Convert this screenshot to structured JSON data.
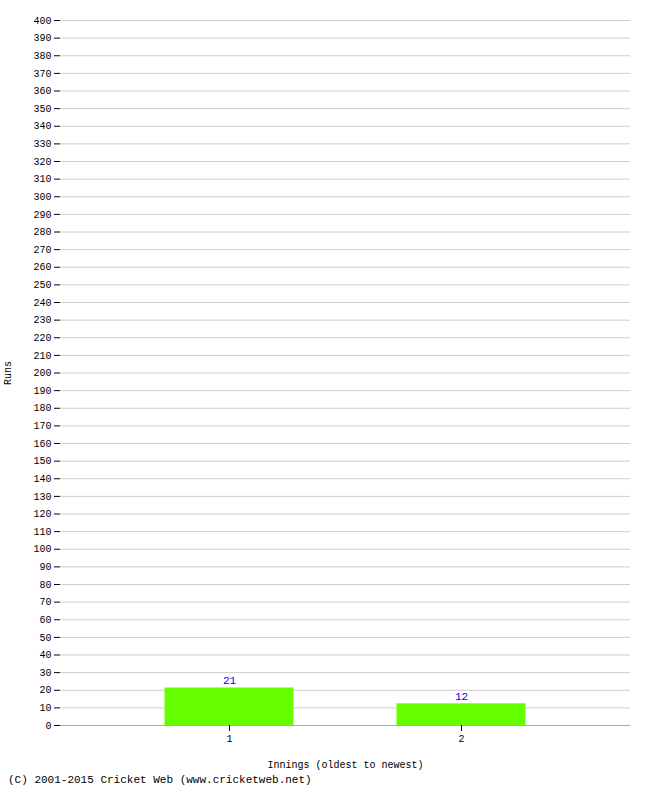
{
  "chart_data": {
    "type": "bar",
    "categories": [
      "1",
      "2"
    ],
    "values": [
      21,
      12
    ],
    "color": "#66ff00",
    "xlabel": "Innings (oldest to newest)",
    "ylabel": "Runs",
    "ylim": [
      0,
      400
    ],
    "yticks": [
      0,
      10,
      20,
      30,
      40,
      50,
      60,
      70,
      80,
      90,
      100,
      110,
      120,
      130,
      140,
      150,
      160,
      170,
      180,
      190,
      200,
      210,
      220,
      230,
      240,
      250,
      260,
      270,
      280,
      290,
      300,
      310,
      320,
      330,
      340,
      350,
      360,
      370,
      380,
      390,
      400
    ],
    "grid": true,
    "data_labels": true,
    "caption": "(C) 2001-2015 Cricket Web (www.cricketweb.net)"
  }
}
